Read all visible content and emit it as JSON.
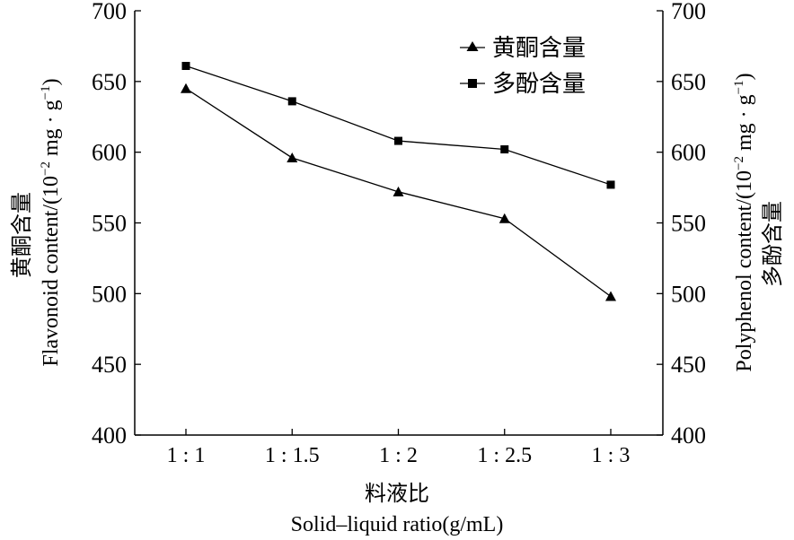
{
  "chart_data": {
    "type": "line",
    "categories": [
      "1 : 1",
      "1 : 1.5",
      "1 : 2",
      "1 : 2.5",
      "1 : 3"
    ],
    "series": [
      {
        "name": "黄酮含量",
        "marker": "triangle",
        "axis": "left",
        "values": [
          645,
          596,
          572,
          553,
          498
        ]
      },
      {
        "name": "多酚含量",
        "marker": "square",
        "axis": "right",
        "values": [
          661,
          636,
          608,
          602,
          577
        ]
      }
    ],
    "ylim": [
      400,
      700
    ],
    "yticks": [
      400,
      450,
      500,
      550,
      600,
      650,
      700
    ],
    "xlabel_cn": "料液比",
    "xlabel_en": "Solid–liquid ratio(g/mL)",
    "ylabel_left_cn": "黄酮含量",
    "ylabel_left_en": "Flavonoid content/(10",
    "ylabel_right_cn": "多酚含量",
    "ylabel_right_en": "Polyphenol content/(10",
    "unit_exp": "−2",
    "unit_mid": " mg · g",
    "unit_exp2": "−1",
    "unit_end": ")",
    "legend_position": "top-right",
    "grid": false,
    "line_color": "#000000"
  }
}
